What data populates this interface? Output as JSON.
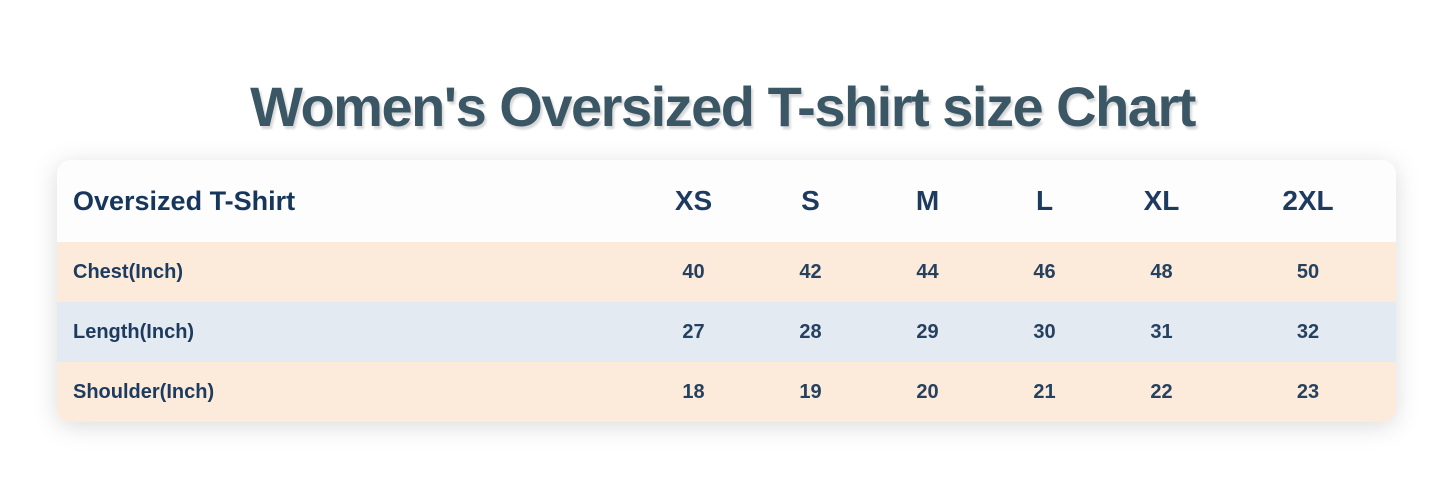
{
  "page": {
    "title": "Women's Oversized T-shirt size Chart"
  },
  "table": {
    "header_label": "Oversized T-Shirt",
    "columns": [
      "XS",
      "S",
      "M",
      "L",
      "XL",
      "2XL"
    ],
    "rows": [
      {
        "label": "Chest(Inch)",
        "values": [
          "40",
          "42",
          "44",
          "46",
          "48",
          "50"
        ]
      },
      {
        "label": "Length(Inch)",
        "values": [
          "27",
          "28",
          "29",
          "30",
          "31",
          "32"
        ]
      },
      {
        "label": "Shoulder(Inch)",
        "values": [
          "18",
          "19",
          "20",
          "21",
          "22",
          "23"
        ]
      }
    ]
  },
  "colors": {
    "title_text": "#3b5766",
    "table_text": "#1d3a5f",
    "header_bg": "#fdfdfe",
    "row_pattern": [
      "#fcebdb",
      "#e3eaf1",
      "#fcebdb"
    ]
  },
  "chart_data": {
    "type": "table",
    "title": "Women's Oversized T-shirt size Chart",
    "columns": [
      "Oversized T-Shirt",
      "XS",
      "S",
      "M",
      "L",
      "XL",
      "2XL"
    ],
    "rows": [
      [
        "Chest(Inch)",
        40,
        42,
        44,
        46,
        48,
        50
      ],
      [
        "Length(Inch)",
        27,
        28,
        29,
        30,
        31,
        32
      ],
      [
        "Shoulder(Inch)",
        18,
        19,
        20,
        21,
        22,
        23
      ]
    ]
  }
}
